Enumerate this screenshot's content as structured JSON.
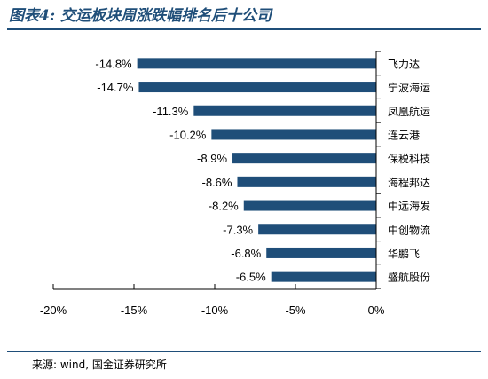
{
  "header": {
    "title": "图表4: 交运板块周涨跌幅排名后十公司"
  },
  "footer": {
    "source": "来源: wind, 国金证券研究所"
  },
  "colors": {
    "bar": "#1f4e79",
    "rule": "#1f4e79"
  },
  "chart_data": {
    "type": "bar",
    "orientation": "horizontal",
    "title": "交运板块周涨跌幅排名后十公司",
    "categories": [
      "飞力达",
      "宁波海运",
      "凤凰航运",
      "连云港",
      "保税科技",
      "海程邦达",
      "中远海发",
      "中创物流",
      "华鹏飞",
      "盛航股份"
    ],
    "values": [
      -14.8,
      -14.7,
      -11.3,
      -10.2,
      -8.9,
      -8.6,
      -8.2,
      -7.3,
      -6.8,
      -6.5
    ],
    "value_labels": [
      "-14.8%",
      "-14.7%",
      "-11.3%",
      "-10.2%",
      "-8.9%",
      "-8.6%",
      "-8.2%",
      "-7.3%",
      "-6.8%",
      "-6.5%"
    ],
    "xlim": [
      -20,
      0
    ],
    "xticks": [
      -20,
      -15,
      -10,
      -5,
      0
    ],
    "xtick_labels": [
      "-20%",
      "-15%",
      "-10%",
      "-5%",
      "0%"
    ],
    "grid": false,
    "legend": "none"
  }
}
